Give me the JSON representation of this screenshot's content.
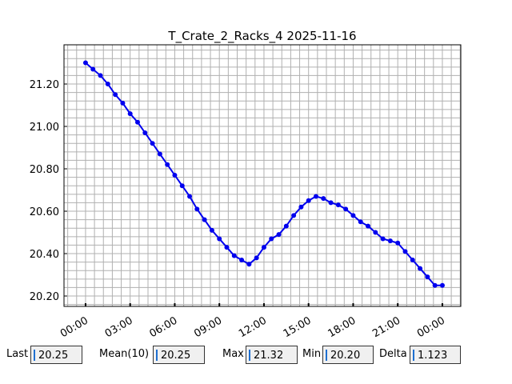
{
  "chart_data": {
    "type": "line",
    "title": "T_Crate_2_Racks_4 2025-11-16",
    "x": [
      0,
      0.5,
      1,
      1.5,
      2,
      2.5,
      3,
      3.5,
      4,
      4.5,
      5,
      5.5,
      6,
      6.5,
      7,
      7.5,
      8,
      8.5,
      9,
      9.5,
      10,
      10.5,
      11,
      11.5,
      12,
      12.5,
      13,
      13.5,
      14,
      14.5,
      15,
      15.5,
      16,
      16.5,
      17,
      17.5,
      18,
      18.5,
      19,
      19.5,
      20,
      20.5,
      21,
      21.5,
      22,
      22.5,
      23,
      23.5,
      24
    ],
    "series": [
      {
        "color": "#0000ee",
        "values": [
          21.3,
          21.27,
          21.24,
          21.2,
          21.15,
          21.11,
          21.06,
          21.02,
          20.97,
          20.92,
          20.87,
          20.82,
          20.77,
          20.72,
          20.67,
          20.61,
          20.56,
          20.51,
          20.47,
          20.43,
          20.39,
          20.37,
          20.35,
          20.38,
          20.43,
          20.47,
          20.49,
          20.53,
          20.58,
          20.62,
          20.65,
          20.67,
          20.66,
          20.64,
          20.63,
          20.61,
          20.58,
          20.55,
          20.53,
          20.5,
          20.47,
          20.46,
          20.45,
          20.41,
          20.37,
          20.33,
          20.29,
          20.25,
          20.25
        ]
      }
    ],
    "xlim": [
      -1.45,
      25.24
    ],
    "xticks": [
      {
        "value": 0,
        "label": "00:00"
      },
      {
        "value": 3,
        "label": "03:00"
      },
      {
        "value": 6,
        "label": "06:00"
      },
      {
        "value": 9,
        "label": "09:00"
      },
      {
        "value": 12,
        "label": "12:00"
      },
      {
        "value": 15,
        "label": "15:00"
      },
      {
        "value": 18,
        "label": "18:00"
      },
      {
        "value": 21,
        "label": "21:00"
      },
      {
        "value": 24,
        "label": "00:00"
      }
    ],
    "ylim": [
      20.151,
      21.385
    ],
    "yticks": [
      {
        "value": 20.2,
        "label": "20.20"
      },
      {
        "value": 20.4,
        "label": "20.40"
      },
      {
        "value": 20.6,
        "label": "20.60"
      },
      {
        "value": 20.8,
        "label": "20.80"
      },
      {
        "value": 21.0,
        "label": "21.00"
      },
      {
        "value": 21.2,
        "label": "21.20"
      }
    ],
    "grid": true,
    "minor_grid_divisions": 5
  },
  "stats": [
    {
      "label": "Last",
      "value": "20.25"
    },
    {
      "label": "Mean(10)",
      "value": "20.25"
    },
    {
      "label": "Max",
      "value": "21.32"
    },
    {
      "label": "Min",
      "value": "20.20"
    },
    {
      "label": "Delta",
      "value": "1.123"
    }
  ]
}
